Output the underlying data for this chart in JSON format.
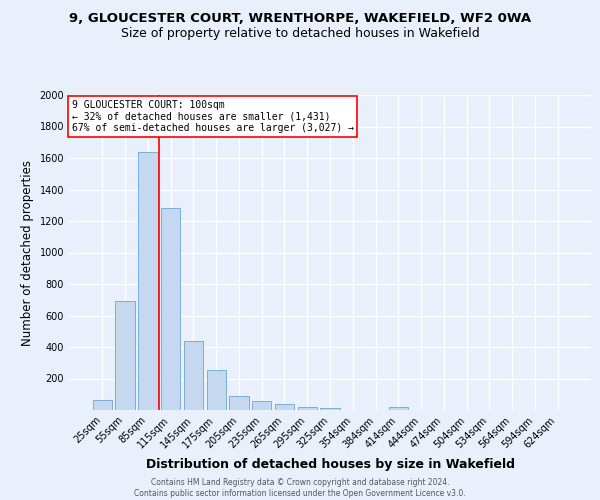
{
  "title1": "9, GLOUCESTER COURT, WRENTHORPE, WAKEFIELD, WF2 0WA",
  "title2": "Size of property relative to detached houses in Wakefield",
  "xlabel": "Distribution of detached houses by size in Wakefield",
  "ylabel": "Number of detached properties",
  "footer1": "Contains HM Land Registry data © Crown copyright and database right 2024.",
  "footer2": "Contains public sector information licensed under the Open Government Licence v3.0.",
  "bar_labels": [
    "25sqm",
    "55sqm",
    "85sqm",
    "115sqm",
    "145sqm",
    "175sqm",
    "205sqm",
    "235sqm",
    "265sqm",
    "295sqm",
    "325sqm",
    "354sqm",
    "384sqm",
    "414sqm",
    "444sqm",
    "474sqm",
    "504sqm",
    "534sqm",
    "564sqm",
    "594sqm",
    "624sqm"
  ],
  "bar_values": [
    65,
    695,
    1640,
    1285,
    440,
    255,
    90,
    55,
    35,
    22,
    12,
    0,
    0,
    18,
    0,
    0,
    0,
    0,
    0,
    0,
    0
  ],
  "bar_color": "#c5d8f0",
  "bar_edgecolor": "#7aafd4",
  "annotation_line_color": "red",
  "annotation_box_text": "9 GLOUCESTER COURT: 100sqm\n← 32% of detached houses are smaller (1,431)\n67% of semi-detached houses are larger (3,027) →",
  "annotation_box_color": "white",
  "annotation_box_edgecolor": "red",
  "bg_color": "#eaf0fb",
  "plot_bg_color": "#eaf0fb",
  "ylim": [
    0,
    2000
  ],
  "yticks": [
    0,
    200,
    400,
    600,
    800,
    1000,
    1200,
    1400,
    1600,
    1800,
    2000
  ],
  "grid_color": "white",
  "title1_fontsize": 9.5,
  "title2_fontsize": 9,
  "xlabel_fontsize": 9,
  "ylabel_fontsize": 8.5,
  "tick_fontsize": 7,
  "annotation_fontsize": 7,
  "footer_fontsize": 5.5
}
